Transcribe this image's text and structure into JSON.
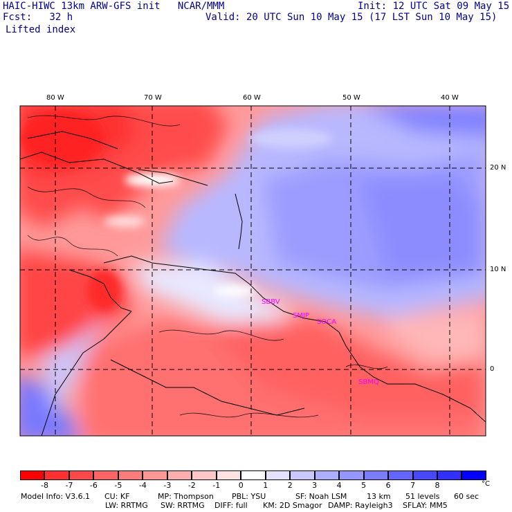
{
  "header": {
    "title": "HAIC-HIWC 13km ARW-GFS init   NCAR/MMM",
    "forecast": "Fcst:   32 h",
    "field": "Lifted index",
    "init": "Init: 12 UTC Sat 09 May 15",
    "valid": "Valid: 20 UTC Sun 10 May 15 (17 LST Sun 10 May 15)"
  },
  "map": {
    "lon_labels": [
      "80 W",
      "70 W",
      "60 W",
      "50 W",
      "40 W"
    ],
    "lat_labels": [
      "20 N",
      "10 N",
      "0"
    ],
    "stations": [
      "SBBV",
      "SMJP",
      "SOCA",
      "SBMQ"
    ],
    "station_color": "#ff00ff"
  },
  "legend": {
    "colors": [
      "#ff0000",
      "#ff3030",
      "#ff4848",
      "#ff6464",
      "#ff7c7c",
      "#ff9696",
      "#ffaeae",
      "#ffc8c8",
      "#ffe2e2",
      "#ffffff",
      "#e2e2ff",
      "#c8c8ff",
      "#aeaeff",
      "#9696ff",
      "#7c7cff",
      "#6464ff",
      "#4848ff",
      "#3030ff",
      "#0000ff"
    ],
    "labels": [
      "-8",
      "-7",
      "-6",
      "-5",
      "-4",
      "-3",
      "-2",
      "-1",
      "0",
      "1",
      "2",
      "3",
      "4",
      "5",
      "6",
      "7",
      "8"
    ],
    "unit": "°C"
  },
  "footer": {
    "line1": [
      "Model Info: V3.6.1",
      "CU: KF",
      "MP: Thompson",
      "PBL: YSU",
      "SF: Noah LSM",
      "13 km",
      "51 levels",
      "60 sec"
    ],
    "line2": [
      "LW: RRTMG",
      "SW: RRTMG",
      "DIFF: full",
      "KM: 2D Smagor",
      "DAMP: Rayleigh3",
      "SFLAY: MM5"
    ]
  }
}
